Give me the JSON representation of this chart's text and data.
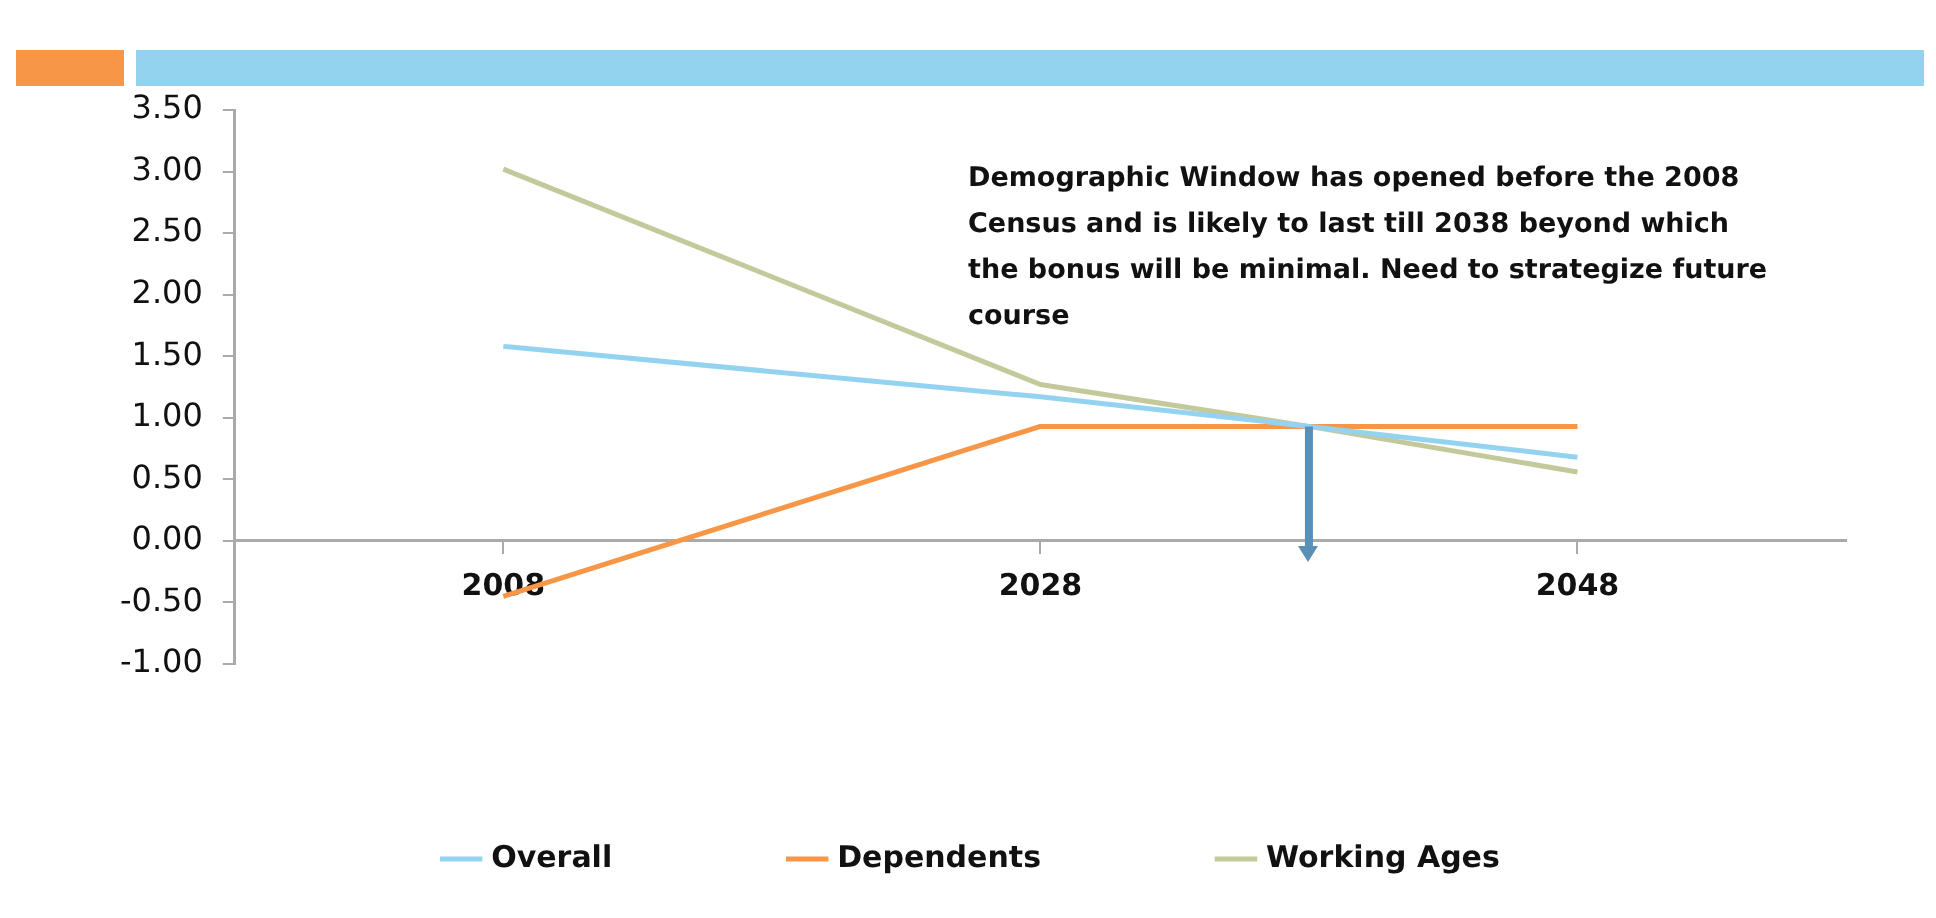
{
  "chart_data": {
    "type": "line",
    "x": [
      2008,
      2028,
      2038,
      2048
    ],
    "series": [
      {
        "name": "Overall",
        "color": "#93d3f0",
        "values": [
          1.58,
          1.17,
          0.93,
          0.68
        ]
      },
      {
        "name": "Dependents",
        "color": "#f79646",
        "values": [
          -0.45,
          0.93,
          0.93,
          0.93
        ]
      },
      {
        "name": "Working Ages",
        "color": "#c3c99a",
        "values": [
          3.02,
          1.27,
          0.93,
          0.56
        ]
      }
    ],
    "xlim": [
      1998,
      2058
    ],
    "xticks": [
      2008,
      2028,
      2048
    ],
    "ylim": [
      -1,
      3.5
    ],
    "yticks": [
      {
        "value": -1,
        "label": "-1.00"
      },
      {
        "value": -0.5,
        "label": "-0.50"
      },
      {
        "value": 0,
        "label": "0.00"
      },
      {
        "value": 0.5,
        "label": "0.50"
      },
      {
        "value": 1,
        "label": "1.00"
      },
      {
        "value": 1.5,
        "label": "1.50"
      },
      {
        "value": 2,
        "label": "2.00"
      },
      {
        "value": 2.5,
        "label": "2.50"
      },
      {
        "value": 3,
        "label": "3.00"
      },
      {
        "value": 3.5,
        "label": "3.50"
      }
    ],
    "ref_lines": [
      {
        "axis": "x",
        "value": 2038,
        "color": "#5a8fb8"
      }
    ],
    "annotations": [
      "Demographic Window has opened before the 2008 Census and is likely to last till 2038 beyond which the bonus will be minimal. Need to strategize future course"
    ],
    "grid": false,
    "legend": "bottom",
    "marker": "none",
    "line_style": "solid"
  }
}
